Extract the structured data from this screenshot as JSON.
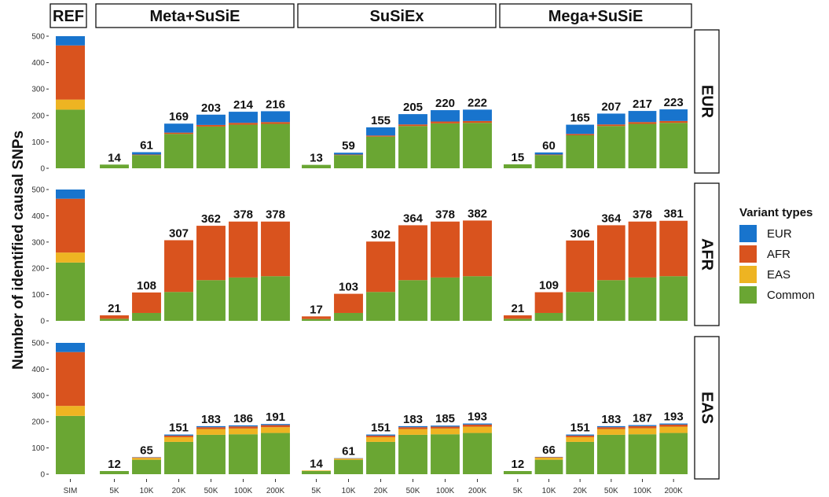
{
  "chart_data": {
    "type": "bar",
    "stacked": true,
    "ylabel": "Number of identified causal SNPs",
    "ylim": [
      0,
      500
    ],
    "yticks": [
      0,
      100,
      200,
      300,
      400,
      500
    ],
    "legend": {
      "title": "Variant types",
      "placement": "right",
      "items": [
        {
          "name": "EUR",
          "color": "#1874CD"
        },
        {
          "name": "AFR",
          "color": "#D9531E"
        },
        {
          "name": "EAS",
          "color": "#EEB422"
        },
        {
          "name": "Common",
          "color": "#6AA633"
        }
      ]
    },
    "stack_order": [
      "Common",
      "EAS",
      "AFR",
      "EUR"
    ],
    "ref_panel": {
      "strip": "REF",
      "category": "SIM",
      "rows": {
        "EUR": {
          "Common": 222,
          "EAS": 38,
          "AFR": 205,
          "EUR": 35
        },
        "AFR": {
          "Common": 222,
          "EAS": 38,
          "AFR": 205,
          "EUR": 35
        },
        "EAS": {
          "Common": 222,
          "EAS": 38,
          "AFR": 205,
          "EUR": 35
        }
      }
    },
    "method_panels": [
      "Meta+SuSiE",
      "SuSiEx",
      "Mega+SuSiE"
    ],
    "row_panels": [
      "EUR",
      "AFR",
      "EAS"
    ],
    "categories": [
      "5K",
      "10K",
      "20K",
      "50K",
      "100K",
      "200K"
    ],
    "data": {
      "Meta+SuSiE": {
        "EUR": {
          "totals": [
            14,
            61,
            169,
            203,
            214,
            216
          ],
          "Common": [
            14,
            50,
            130,
            158,
            165,
            168
          ],
          "EAS": [
            0,
            0,
            0,
            0,
            0,
            0
          ],
          "AFR": [
            0,
            2,
            5,
            6,
            7,
            7
          ],
          "EUR": [
            0,
            9,
            34,
            39,
            42,
            41
          ]
        },
        "AFR": {
          "totals": [
            21,
            108,
            307,
            362,
            378,
            378
          ],
          "Common": [
            8,
            30,
            110,
            155,
            165,
            170
          ],
          "EAS": [
            0,
            0,
            0,
            0,
            0,
            0
          ],
          "AFR": [
            13,
            78,
            197,
            207,
            213,
            208
          ],
          "EUR": [
            0,
            0,
            0,
            0,
            0,
            0
          ]
        },
        "EAS": {
          "totals": [
            12,
            65,
            151,
            183,
            186,
            191
          ],
          "Common": [
            12,
            55,
            123,
            150,
            152,
            157
          ],
          "EAS": [
            0,
            7,
            18,
            22,
            22,
            22
          ],
          "AFR": [
            0,
            2,
            6,
            7,
            8,
            8
          ],
          "EUR": [
            0,
            1,
            4,
            4,
            4,
            4
          ]
        }
      },
      "SuSiEx": {
        "EUR": {
          "totals": [
            13,
            59,
            155,
            205,
            220,
            222
          ],
          "Common": [
            13,
            50,
            120,
            160,
            170,
            172
          ],
          "EAS": [
            0,
            0,
            0,
            0,
            0,
            0
          ],
          "AFR": [
            0,
            2,
            4,
            6,
            7,
            7
          ],
          "EUR": [
            0,
            7,
            31,
            39,
            43,
            43
          ]
        },
        "AFR": {
          "totals": [
            17,
            103,
            302,
            364,
            378,
            382
          ],
          "Common": [
            7,
            30,
            110,
            155,
            165,
            170
          ],
          "EAS": [
            0,
            0,
            0,
            0,
            0,
            0
          ],
          "AFR": [
            10,
            73,
            192,
            209,
            213,
            212
          ],
          "EUR": [
            0,
            0,
            0,
            0,
            0,
            0
          ]
        },
        "EAS": {
          "totals": [
            14,
            61,
            151,
            183,
            185,
            193
          ],
          "Common": [
            12,
            55,
            123,
            150,
            152,
            157
          ],
          "EAS": [
            2,
            4,
            18,
            22,
            22,
            24
          ],
          "AFR": [
            0,
            1,
            6,
            7,
            7,
            8
          ],
          "EUR": [
            0,
            1,
            4,
            4,
            4,
            4
          ]
        }
      },
      "Mega+SuSiE": {
        "EUR": {
          "totals": [
            15,
            60,
            165,
            207,
            217,
            223
          ],
          "Common": [
            15,
            50,
            125,
            160,
            168,
            172
          ],
          "EAS": [
            0,
            0,
            0,
            0,
            0,
            0
          ],
          "AFR": [
            0,
            2,
            5,
            6,
            7,
            7
          ],
          "EUR": [
            0,
            8,
            35,
            41,
            42,
            44
          ]
        },
        "AFR": {
          "totals": [
            21,
            109,
            306,
            364,
            378,
            381
          ],
          "Common": [
            8,
            30,
            110,
            155,
            165,
            170
          ],
          "EAS": [
            0,
            0,
            0,
            0,
            0,
            0
          ],
          "AFR": [
            13,
            79,
            196,
            209,
            213,
            211
          ],
          "EUR": [
            0,
            0,
            0,
            0,
            0,
            0
          ]
        },
        "EAS": {
          "totals": [
            12,
            66,
            151,
            183,
            187,
            193
          ],
          "Common": [
            12,
            55,
            123,
            150,
            152,
            157
          ],
          "EAS": [
            0,
            8,
            18,
            22,
            23,
            24
          ],
          "AFR": [
            0,
            2,
            6,
            7,
            8,
            8
          ],
          "EUR": [
            0,
            1,
            4,
            4,
            4,
            4
          ]
        }
      }
    }
  }
}
